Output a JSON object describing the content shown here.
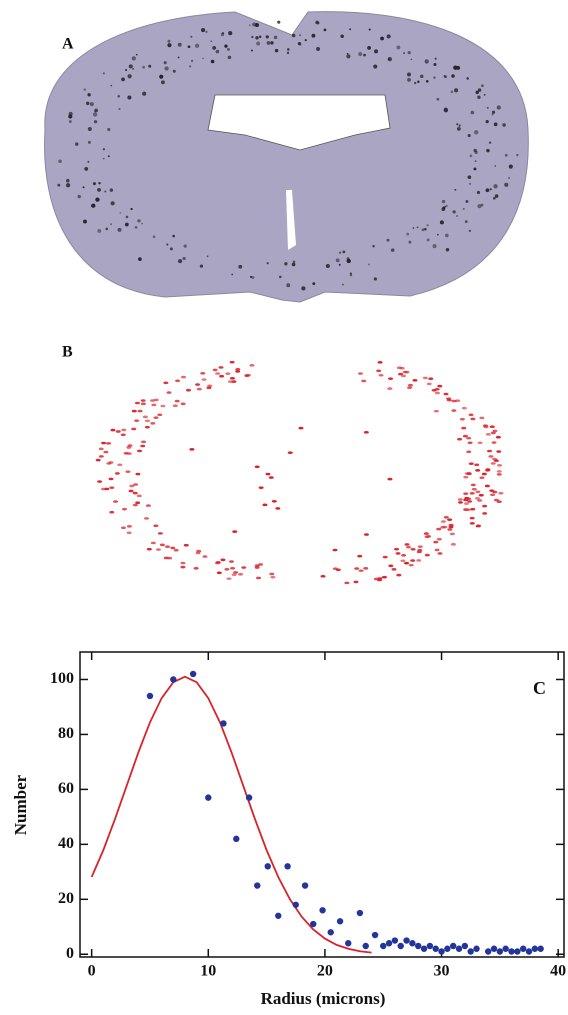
{
  "panel_labels": [
    "A",
    "B"
  ],
  "chart_data": {
    "type": "scatter",
    "annotation": "C",
    "x_label": "Radius (microns)",
    "y_label": "Number",
    "xlim": [
      -1,
      40.5
    ],
    "ylim": [
      -1,
      110
    ],
    "xticks": [
      0,
      10,
      20,
      30,
      40
    ],
    "yticks": [
      0,
      20,
      40,
      60,
      80,
      100
    ],
    "points": {
      "color": "#23349a",
      "x": [
        5,
        7,
        8.7,
        10,
        11.3,
        12.4,
        13.5,
        14.2,
        15.1,
        16,
        16.8,
        17.5,
        18.3,
        19,
        19.8,
        20.5,
        21.3,
        22,
        23,
        23.5,
        24.3,
        25,
        25.5,
        26,
        26.5,
        27,
        27.5,
        28,
        28.5,
        29,
        29.5,
        30,
        30.5,
        31,
        31.5,
        32,
        32.5,
        33,
        34,
        34.5,
        35,
        35.5,
        36,
        36.5,
        37,
        37.5,
        38,
        38.5
      ],
      "y": [
        94,
        100,
        102,
        57,
        84,
        42,
        57,
        25,
        32,
        14,
        32,
        18,
        25,
        11,
        16,
        8,
        12,
        4,
        15,
        3,
        7,
        3,
        4,
        5,
        3,
        5,
        4,
        3,
        2,
        3,
        2,
        1,
        2,
        3,
        2,
        3,
        1,
        2,
        1,
        2,
        1,
        2,
        1,
        1,
        2,
        1,
        2,
        2
      ]
    },
    "curve": {
      "color": "#d8232a",
      "x": [
        0,
        1,
        2,
        3,
        4,
        5,
        6,
        7,
        8,
        9,
        10,
        11,
        12,
        13,
        14,
        15,
        16,
        17,
        18,
        19,
        20,
        21,
        22,
        23,
        24
      ],
      "y": [
        28.1,
        37.9,
        49.2,
        61.3,
        73.4,
        84.4,
        93.2,
        99.0,
        101,
        99.0,
        93.2,
        84.4,
        73.4,
        61.3,
        49.2,
        37.9,
        28.1,
        20.0,
        13.7,
        9.0,
        5.7,
        3.4,
        2.0,
        1.1,
        0.6
      ]
    }
  }
}
